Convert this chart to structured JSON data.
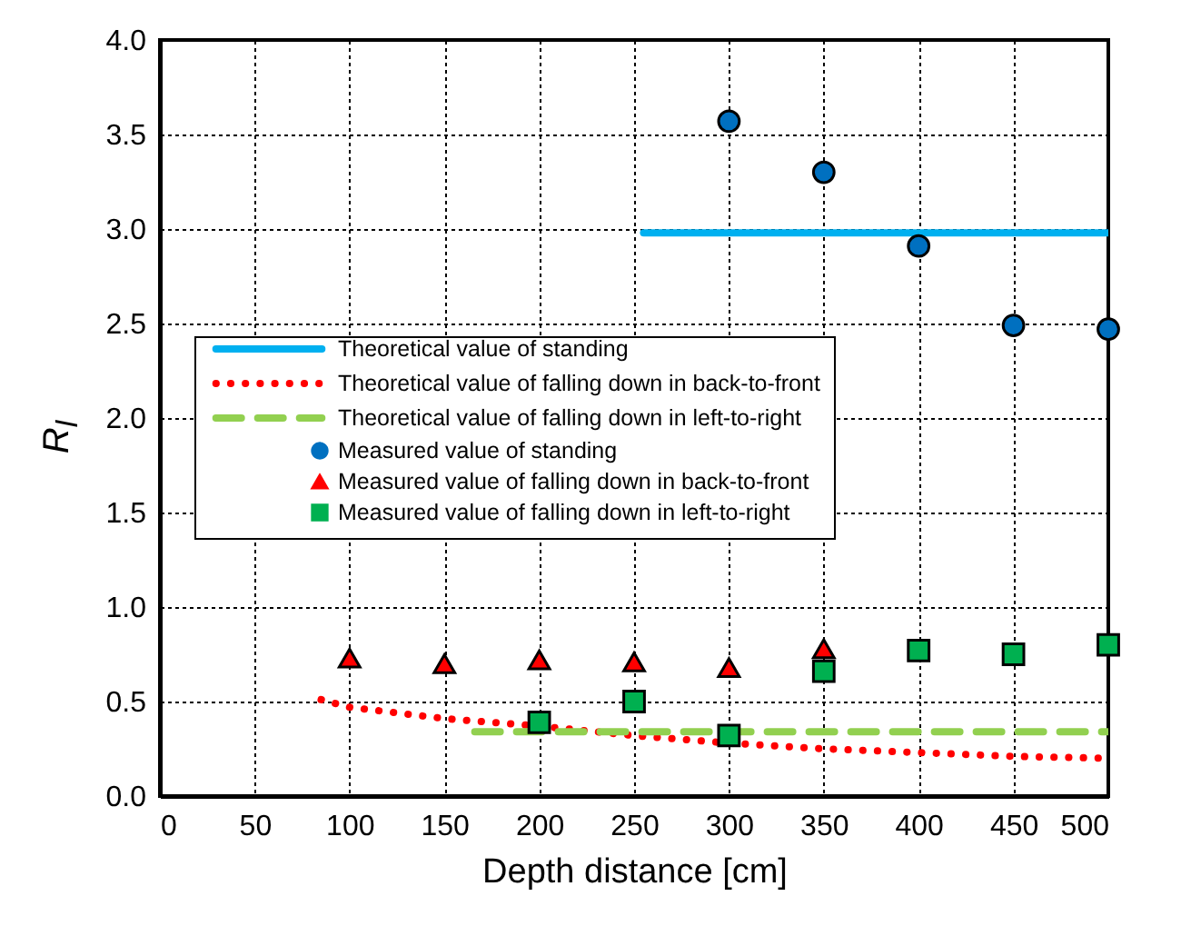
{
  "chart_data": {
    "type": "line",
    "xlabel": "Depth distance [cm]",
    "ylabel": "R$_{l}$",
    "xlim": [
      0,
      500
    ],
    "xticks": [
      0,
      50,
      100,
      150,
      200,
      250,
      300,
      350,
      400,
      450,
      500
    ],
    "ylim": [
      0,
      4
    ],
    "yticks": [
      {
        "value": 0,
        "label": "0.0"
      },
      0.5,
      {
        "value": 1,
        "label": "1.0"
      },
      1.5,
      {
        "value": 2,
        "label": "2.0"
      },
      2.5,
      {
        "value": 3,
        "label": "3.0"
      },
      3.5,
      {
        "value": 4,
        "label": "4.0"
      }
    ],
    "grid": true,
    "legend": "left",
    "series": [
      {
        "name": "Theoretical value of standing",
        "line_style": "solid",
        "marker": "none",
        "color": "#00b0f0",
        "x": [
          255,
          500
        ],
        "values": [
          2.98,
          2.98
        ]
      },
      {
        "name": "Theoretical value of falling down in back-to-front",
        "line_style": "dotted",
        "marker": "none",
        "color": "#ff0000",
        "x": [
          85,
          100,
          150,
          200,
          250,
          300,
          350,
          400,
          450,
          500
        ],
        "values": [
          0.51,
          0.47,
          0.41,
          0.37,
          0.32,
          0.28,
          0.25,
          0.23,
          0.21,
          0.2
        ]
      },
      {
        "name": "Theoretical value of falling down in left-to-right",
        "line_style": "dashed",
        "marker": "none",
        "color": "#92d050",
        "x": [
          166,
          500
        ],
        "values": [
          0.34,
          0.34
        ]
      },
      {
        "name": "Measured value of standing",
        "type": "scatter",
        "marker": "circle",
        "color": "#0070c0",
        "x": [
          300,
          350,
          400,
          450,
          500
        ],
        "values": [
          3.57,
          3.3,
          2.91,
          2.49,
          2.47
        ]
      },
      {
        "name": "Measured value of falling down in back-to-front",
        "type": "scatter",
        "marker": "triangle",
        "color": "#ff0000",
        "x": [
          100,
          150,
          200,
          250,
          300,
          350
        ],
        "values": [
          0.73,
          0.7,
          0.72,
          0.71,
          0.68,
          0.78
        ]
      },
      {
        "name": "Measured value of falling down in left-to-right",
        "type": "scatter",
        "marker": "square",
        "color": "#00b050",
        "x": [
          200,
          250,
          300,
          350,
          400,
          450,
          500
        ],
        "values": [
          0.39,
          0.5,
          0.32,
          0.66,
          0.77,
          0.75,
          0.8
        ]
      }
    ]
  }
}
